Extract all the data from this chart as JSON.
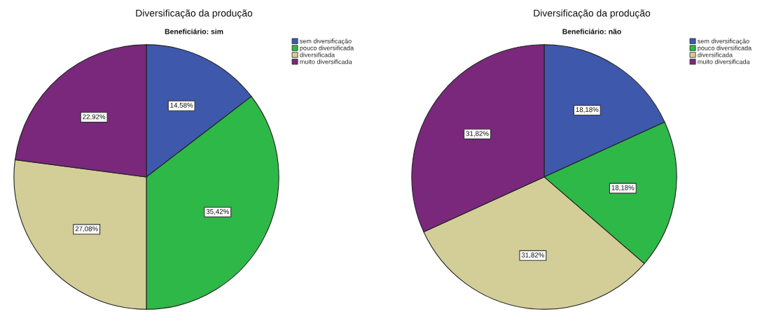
{
  "chart_data": [
    {
      "type": "pie",
      "title": "Diversificação da produção",
      "subtitle": "Beneficiário: sim",
      "categories": [
        "sem diversificação",
        "pouco diversificada",
        "diversificada",
        "muito diversificada"
      ],
      "values": [
        14.58,
        35.42,
        27.08,
        22.92
      ],
      "colors": [
        "#3e58ac",
        "#2eb848",
        "#d3ce97",
        "#7a287b"
      ],
      "value_labels": [
        "14,58%",
        "35,42%",
        "27,08%",
        "22,92%"
      ],
      "legend": "top right"
    },
    {
      "type": "pie",
      "title": "Diversificação da produção",
      "subtitle": "Beneficiário: não",
      "categories": [
        "sem diversificação",
        "pouco diversificada",
        "diversificada",
        "muito diversificada"
      ],
      "values": [
        18.18,
        18.18,
        31.82,
        31.82
      ],
      "colors": [
        "#3e58ac",
        "#2eb848",
        "#d3ce97",
        "#7a287b"
      ],
      "value_labels": [
        "18,18%",
        "18,18%",
        "31,82%",
        "31,82%"
      ],
      "legend": "top right"
    }
  ]
}
